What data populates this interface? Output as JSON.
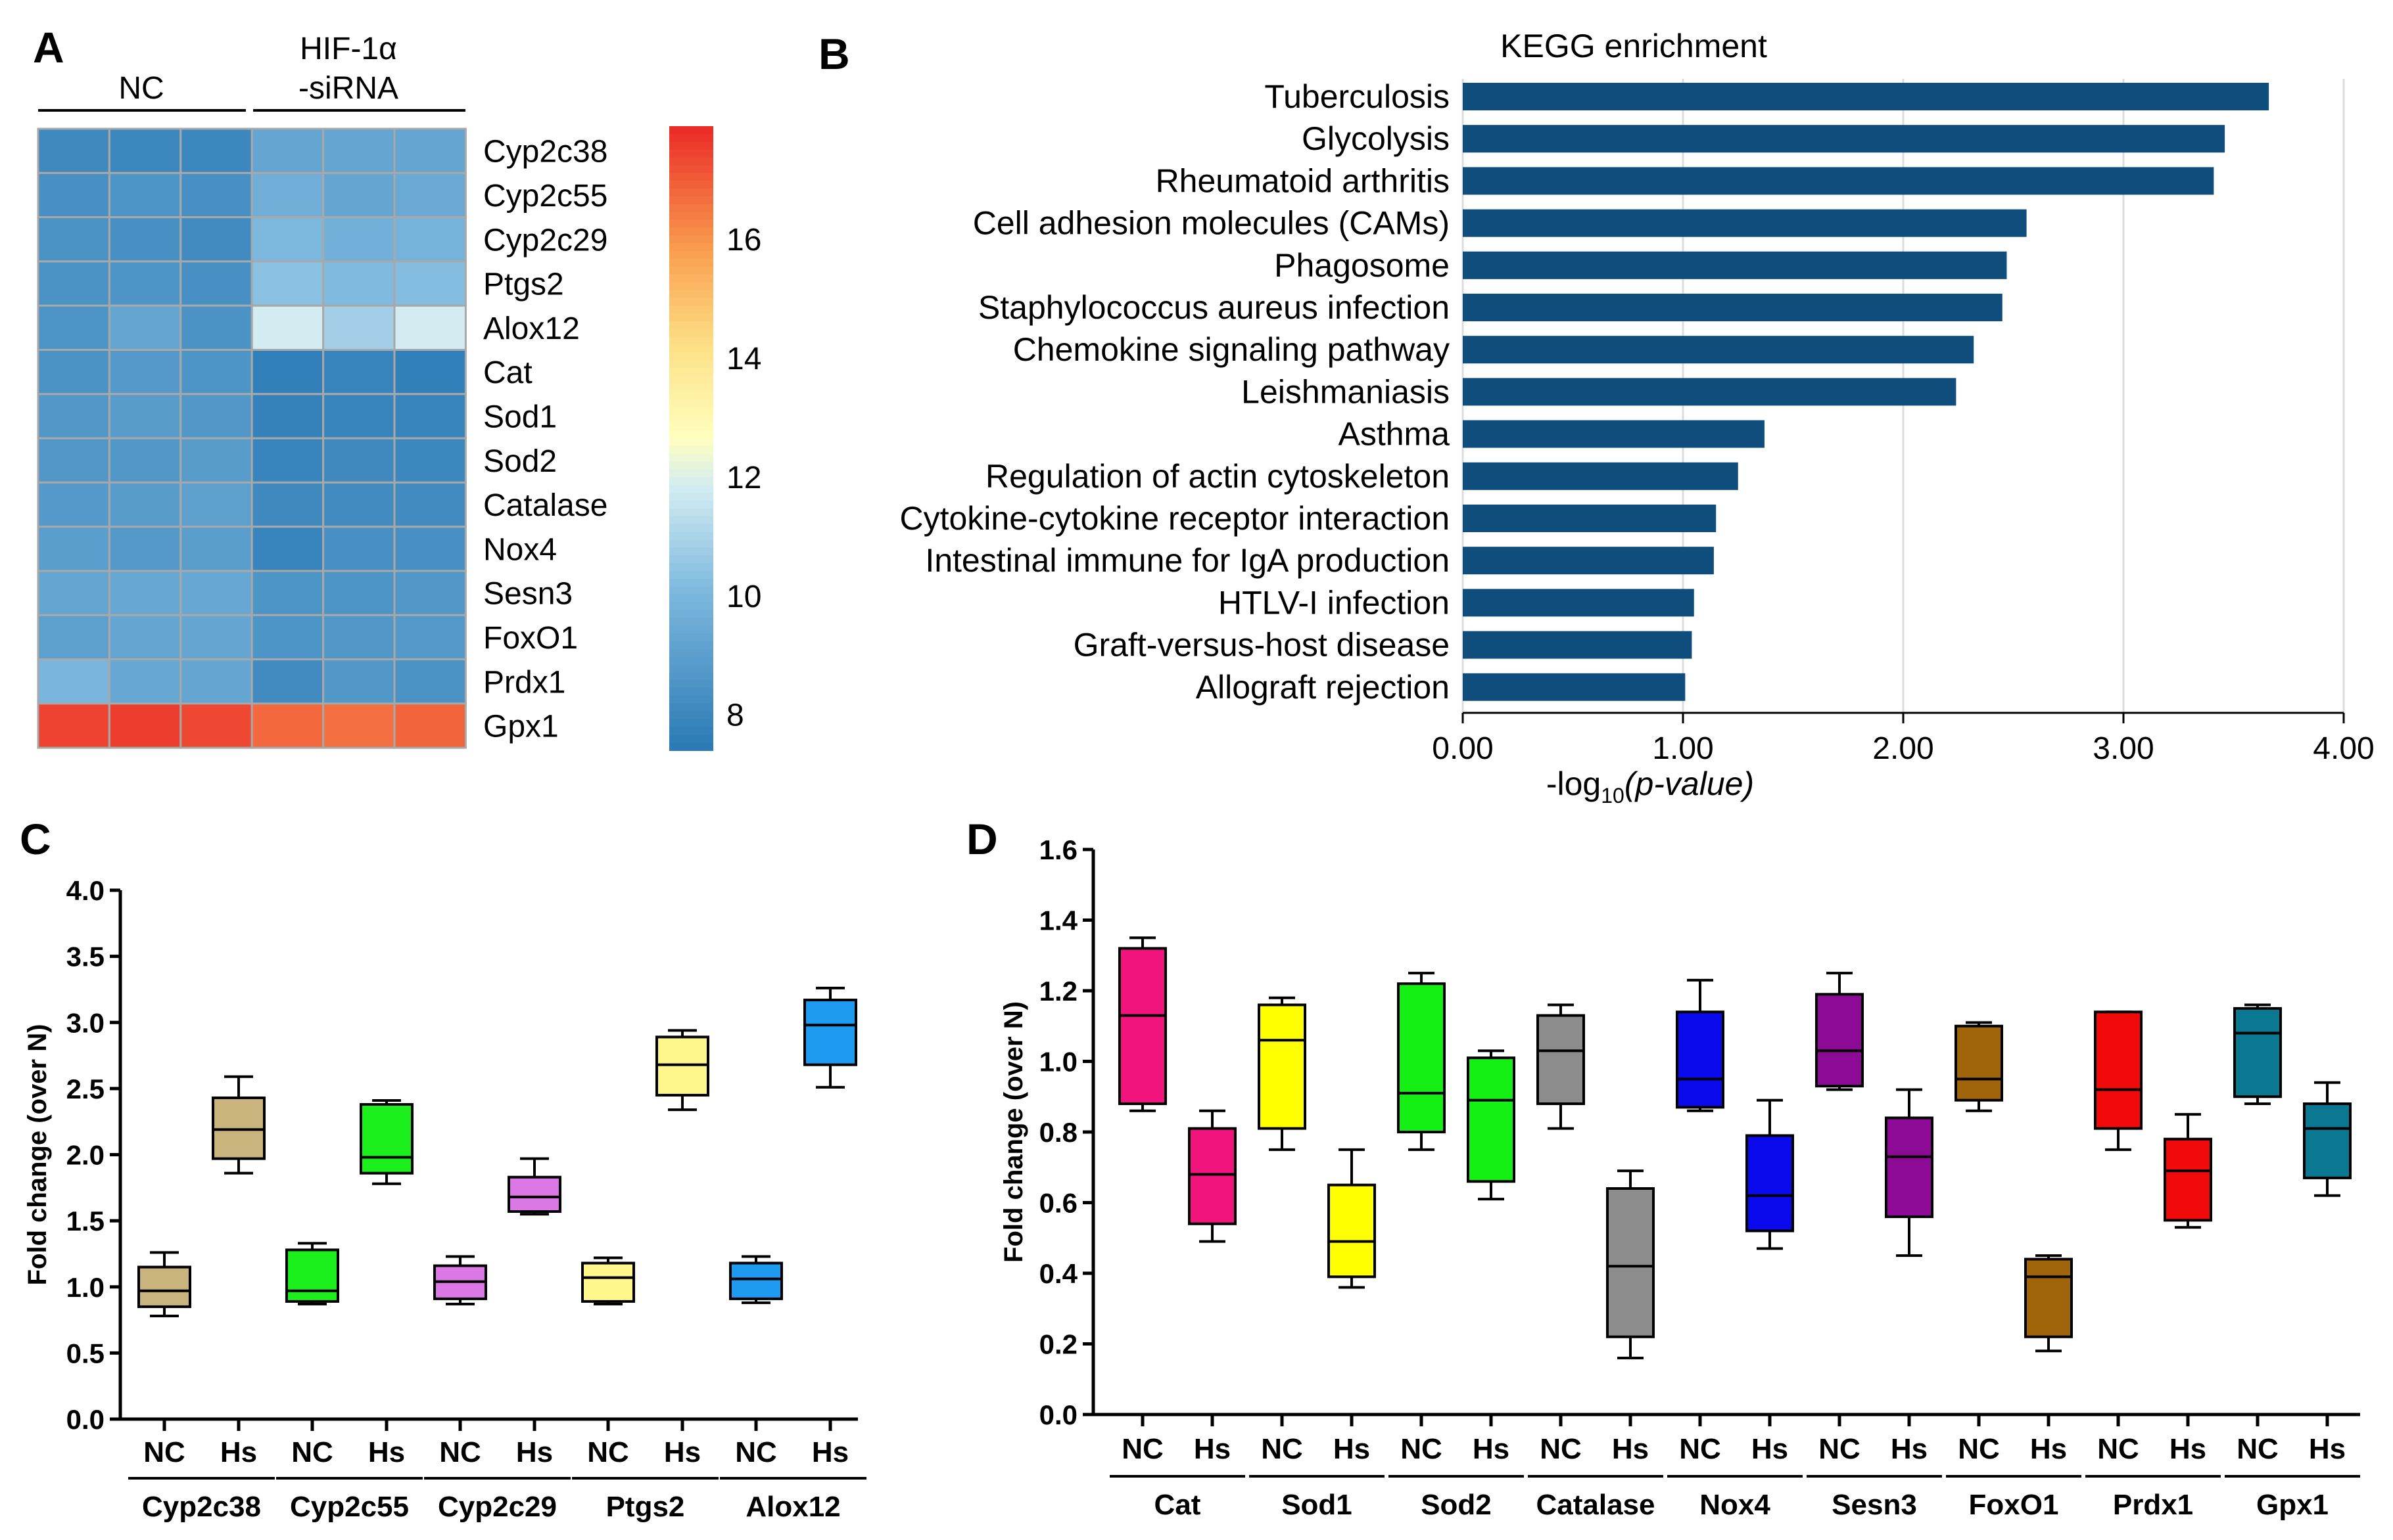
{
  "panels": {
    "a": "A",
    "b": "B",
    "c": "C",
    "d": "D"
  },
  "heatmap": {
    "group_nc": "NC",
    "group_si_line1": "HIF-1α",
    "group_si_line2": "-siRNA",
    "genes": [
      "Cyp2c38",
      "Cyp2c55",
      "Cyp2c29",
      "Ptgs2",
      "Alox12",
      "Cat",
      "Sod1",
      "Sod2",
      "Catalase",
      "Nox4",
      "Sesn3",
      "FoxO1",
      "Prdx1",
      "Gpx1"
    ],
    "values": [
      [
        8.0,
        7.9,
        7.9,
        9.2,
        9.2,
        9.2
      ],
      [
        8.3,
        8.5,
        8.3,
        9.6,
        9.2,
        9.4
      ],
      [
        8.4,
        8.3,
        8.1,
        10.0,
        9.7,
        9.8
      ],
      [
        8.4,
        8.5,
        8.3,
        10.3,
        10.1,
        10.2
      ],
      [
        8.5,
        9.2,
        8.4,
        11.8,
        10.8,
        11.8
      ],
      [
        8.4,
        8.7,
        8.5,
        7.6,
        7.8,
        7.6
      ],
      [
        8.6,
        8.8,
        8.6,
        7.7,
        7.8,
        7.8
      ],
      [
        8.6,
        8.6,
        8.8,
        7.8,
        8.0,
        7.9
      ],
      [
        8.7,
        8.8,
        9.0,
        8.0,
        8.1,
        8.1
      ],
      [
        8.9,
        8.7,
        8.9,
        7.8,
        8.3,
        8.3
      ],
      [
        9.2,
        9.3,
        9.3,
        8.5,
        8.5,
        8.6
      ],
      [
        9.0,
        9.2,
        9.2,
        8.5,
        8.6,
        8.7
      ],
      [
        9.9,
        9.3,
        9.2,
        8.1,
        8.6,
        8.4
      ],
      [
        17.5,
        17.6,
        17.4,
        16.8,
        16.7,
        16.9
      ]
    ],
    "colorbar": {
      "min": 7.4,
      "max": 17.9,
      "ticks": [
        "8",
        "10",
        "12",
        "14",
        "16"
      ]
    }
  },
  "chart_data": [
    {
      "type": "bar",
      "orientation": "horizontal",
      "title": "KEGG  enrichment",
      "categories": [
        "Tuberculosis",
        "Glycolysis",
        "Rheumatoid arthritis",
        "Cell adhesion molecules (CAMs)",
        "Phagosome",
        "Staphylococcus aureus infection",
        "Chemokine signaling pathway",
        "Leishmaniasis",
        "Asthma",
        "Regulation of actin cytoskeleton",
        "Cytokine-cytokine receptor interaction",
        "Intestinal immune for IgA production",
        "HTLV-I infection",
        "Graft-versus-host disease",
        "Allograft rejection"
      ],
      "values": [
        3.66,
        3.46,
        3.41,
        2.56,
        2.47,
        2.45,
        2.32,
        2.24,
        1.37,
        1.25,
        1.15,
        1.14,
        1.05,
        1.04,
        1.01
      ],
      "xlim": [
        0,
        4
      ],
      "xticks": [
        "0.00",
        "1.00",
        "2.00",
        "3.00",
        "4.00"
      ],
      "xlabel_pre": "-log",
      "xlabel_sub": "10",
      "xlabel_post": "(p-value)",
      "grid": true,
      "color": "#0e4d7c"
    },
    {
      "type": "box",
      "ylabel": "Fold change (over N)",
      "ylim": [
        0,
        4
      ],
      "yticks": [
        "0.0",
        "0.5",
        "1.0",
        "1.5",
        "2.0",
        "2.5",
        "3.0",
        "3.5",
        "4.0"
      ],
      "groups": [
        {
          "name": "Cyp2c38",
          "color": "#c8b47c",
          "boxes": [
            {
              "label": "NC",
              "min": 0.78,
              "q1": 0.85,
              "med": 0.97,
              "q3": 1.15,
              "max": 1.26
            },
            {
              "label": "Hs",
              "min": 1.86,
              "q1": 1.97,
              "med": 2.19,
              "q3": 2.43,
              "max": 2.59
            }
          ]
        },
        {
          "name": "Cyp2c55",
          "color": "#1cf01c",
          "boxes": [
            {
              "label": "NC",
              "min": 0.87,
              "q1": 0.89,
              "med": 0.97,
              "q3": 1.28,
              "max": 1.33
            },
            {
              "label": "Hs",
              "min": 1.78,
              "q1": 1.86,
              "med": 1.98,
              "q3": 2.38,
              "max": 2.41
            }
          ]
        },
        {
          "name": "Cyp2c29",
          "color": "#dc78e6",
          "boxes": [
            {
              "label": "NC",
              "min": 0.87,
              "q1": 0.91,
              "med": 1.04,
              "q3": 1.16,
              "max": 1.23
            },
            {
              "label": "Hs",
              "min": 1.55,
              "q1": 1.57,
              "med": 1.68,
              "q3": 1.83,
              "max": 1.97
            }
          ]
        },
        {
          "name": "Ptgs2",
          "color": "#fff68c",
          "boxes": [
            {
              "label": "NC",
              "min": 0.87,
              "q1": 0.89,
              "med": 1.07,
              "q3": 1.18,
              "max": 1.22
            },
            {
              "label": "Hs",
              "min": 2.34,
              "q1": 2.45,
              "med": 2.68,
              "q3": 2.89,
              "max": 2.94
            }
          ]
        },
        {
          "name": "Alox12",
          "color": "#1e9bf0",
          "boxes": [
            {
              "label": "NC",
              "min": 0.88,
              "q1": 0.91,
              "med": 1.06,
              "q3": 1.18,
              "max": 1.23
            },
            {
              "label": "Hs",
              "min": 2.51,
              "q1": 2.68,
              "med": 2.98,
              "q3": 3.17,
              "max": 3.26
            }
          ]
        }
      ]
    },
    {
      "type": "box",
      "ylabel": "Fold change (over N)",
      "ylim": [
        0,
        1.6
      ],
      "yticks": [
        "0.0",
        "0.2",
        "0.4",
        "0.6",
        "0.8",
        "1.0",
        "1.2",
        "1.4",
        "1.6"
      ],
      "groups": [
        {
          "name": "Cat",
          "color": "#f0147c",
          "boxes": [
            {
              "label": "NC",
              "min": 0.86,
              "q1": 0.88,
              "med": 1.13,
              "q3": 1.32,
              "max": 1.35
            },
            {
              "label": "Hs",
              "min": 0.49,
              "q1": 0.54,
              "med": 0.68,
              "q3": 0.81,
              "max": 0.86
            }
          ]
        },
        {
          "name": "Sod1",
          "color": "#ffff00",
          "boxes": [
            {
              "label": "NC",
              "min": 0.75,
              "q1": 0.81,
              "med": 1.06,
              "q3": 1.16,
              "max": 1.18
            },
            {
              "label": "Hs",
              "min": 0.36,
              "q1": 0.39,
              "med": 0.49,
              "q3": 0.65,
              "max": 0.75
            }
          ]
        },
        {
          "name": "Sod2",
          "color": "#14f014",
          "boxes": [
            {
              "label": "NC",
              "min": 0.75,
              "q1": 0.8,
              "med": 0.91,
              "q3": 1.22,
              "max": 1.25
            },
            {
              "label": "Hs",
              "min": 0.61,
              "q1": 0.66,
              "med": 0.89,
              "q3": 1.01,
              "max": 1.03
            }
          ]
        },
        {
          "name": "Catalase",
          "color": "#8c8c8c",
          "boxes": [
            {
              "label": "NC",
              "min": 0.81,
              "q1": 0.88,
              "med": 1.03,
              "q3": 1.13,
              "max": 1.16
            },
            {
              "label": "Hs",
              "min": 0.16,
              "q1": 0.22,
              "med": 0.42,
              "q3": 0.64,
              "max": 0.69
            }
          ]
        },
        {
          "name": "Nox4",
          "color": "#0a0aec",
          "boxes": [
            {
              "label": "NC",
              "min": 0.86,
              "q1": 0.87,
              "med": 0.95,
              "q3": 1.14,
              "max": 1.23
            },
            {
              "label": "Hs",
              "min": 0.47,
              "q1": 0.52,
              "med": 0.62,
              "q3": 0.79,
              "max": 0.89
            }
          ]
        },
        {
          "name": "Sesn3",
          "color": "#8c0a96",
          "boxes": [
            {
              "label": "NC",
              "min": 0.92,
              "q1": 0.93,
              "med": 1.03,
              "q3": 1.19,
              "max": 1.25
            },
            {
              "label": "Hs",
              "min": 0.45,
              "q1": 0.56,
              "med": 0.73,
              "q3": 0.84,
              "max": 0.92
            }
          ]
        },
        {
          "name": "FoxO1",
          "color": "#a0640a",
          "boxes": [
            {
              "label": "NC",
              "min": 0.86,
              "q1": 0.89,
              "med": 0.95,
              "q3": 1.1,
              "max": 1.11
            },
            {
              "label": "Hs",
              "min": 0.18,
              "q1": 0.22,
              "med": 0.39,
              "q3": 0.44,
              "max": 0.45
            }
          ]
        },
        {
          "name": "Prdx1",
          "color": "#f00a0a",
          "boxes": [
            {
              "label": "NC",
              "min": 0.75,
              "q1": 0.81,
              "med": 0.92,
              "q3": 1.14,
              "max": 1.14
            },
            {
              "label": "Hs",
              "min": 0.53,
              "q1": 0.55,
              "med": 0.69,
              "q3": 0.78,
              "max": 0.85
            }
          ]
        },
        {
          "name": "Gpx1",
          "color": "#0a7891",
          "boxes": [
            {
              "label": "NC",
              "min": 0.88,
              "q1": 0.9,
              "med": 1.08,
              "q3": 1.15,
              "max": 1.16
            },
            {
              "label": "Hs",
              "min": 0.62,
              "q1": 0.67,
              "med": 0.81,
              "q3": 0.88,
              "max": 0.94
            }
          ]
        }
      ]
    }
  ]
}
